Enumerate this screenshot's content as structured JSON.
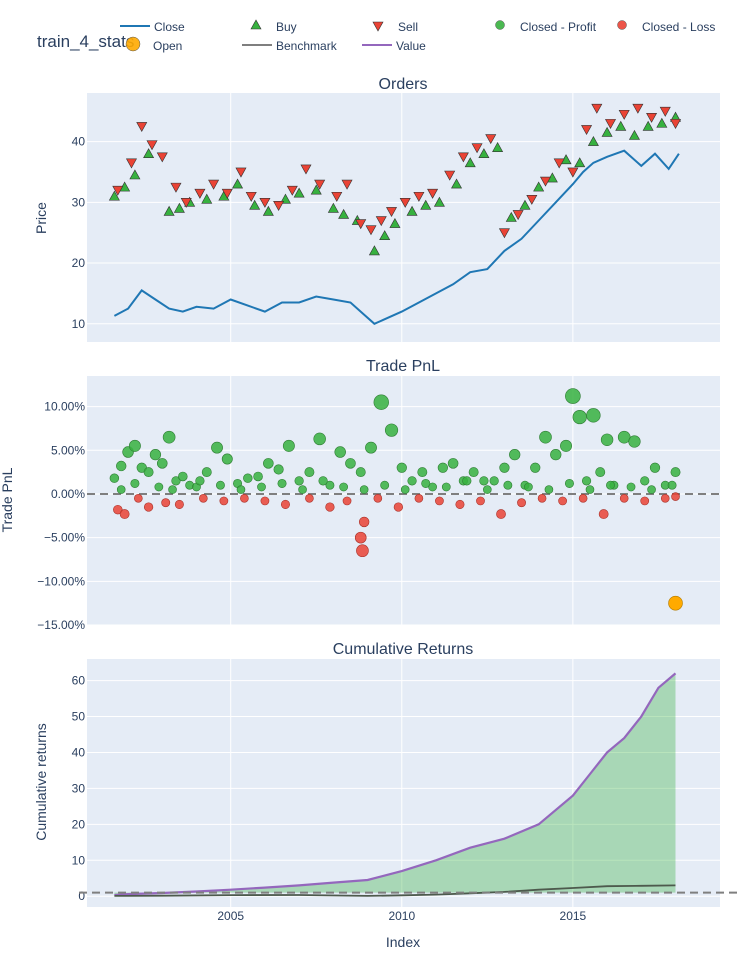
{
  "figure": {
    "title": "train_4_stats",
    "xaxis_label": "Index",
    "x_ticks": [
      "2005",
      "2010",
      "2015"
    ]
  },
  "legend": {
    "items": [
      {
        "label": "Close",
        "symbol": "line",
        "color": "#1f77b4"
      },
      {
        "label": "Buy",
        "symbol": "triangle-up",
        "color": "#37b13f"
      },
      {
        "label": "Sell",
        "symbol": "triangle-down",
        "color": "#ea4335"
      },
      {
        "label": "Closed - Profit",
        "symbol": "circle",
        "color": "#37b13f"
      },
      {
        "label": "Closed - Loss",
        "symbol": "circle",
        "color": "#ea4335"
      },
      {
        "label": "Open",
        "symbol": "circle",
        "color": "#ffaa00"
      },
      {
        "label": "Benchmark",
        "symbol": "line",
        "color": "#7f7f7f"
      },
      {
        "label": "Value",
        "symbol": "line",
        "color": "#9467bd"
      }
    ]
  },
  "colors": {
    "plot_bg": "#e5ecf6",
    "grid": "#ffffff",
    "close": "#1f77b4",
    "buy": "#37b13f",
    "sell": "#ea4335",
    "profit": "#37b13f",
    "loss": "#ea4335",
    "open": "#ffaa00",
    "benchmark": "#7f7f7f",
    "value": "#9467bd",
    "fill": "#37b13f"
  },
  "chart_data": [
    {
      "type": "line",
      "title": "Orders",
      "ylabel": "Price",
      "xlim": [
        2000.8,
        2019.3
      ],
      "ylim": [
        7,
        48
      ],
      "y_ticks": [
        "10",
        "20",
        "30",
        "40"
      ],
      "series": [
        {
          "name": "Close",
          "x": [
            2001.6,
            2002.0,
            2002.4,
            2002.8,
            2003.2,
            2003.6,
            2004.0,
            2004.5,
            2005.0,
            2005.5,
            2006.0,
            2006.5,
            2007.0,
            2007.5,
            2008.0,
            2008.5,
            2008.9,
            2009.2,
            2009.6,
            2010.0,
            2010.5,
            2011.0,
            2011.5,
            2012.0,
            2012.5,
            2013.0,
            2013.5,
            2014.0,
            2014.5,
            2015.0,
            2015.3,
            2015.6,
            2016.0,
            2016.5,
            2017.0,
            2017.4,
            2017.8,
            2018.1
          ],
          "y": [
            11.3,
            12.5,
            15.5,
            14.0,
            12.5,
            12.0,
            12.8,
            12.5,
            14.0,
            13.0,
            12.0,
            13.5,
            13.5,
            14.5,
            14.0,
            13.5,
            11.5,
            10.0,
            11.0,
            12.0,
            13.5,
            15.0,
            16.5,
            18.5,
            19.0,
            22.0,
            24.0,
            27.0,
            30.0,
            33.0,
            35.0,
            36.5,
            37.5,
            38.5,
            36.0,
            38.0,
            35.5,
            38.0
          ]
        },
        {
          "name": "Buy",
          "x": [
            2001.6,
            2001.9,
            2002.2,
            2002.6,
            2003.2,
            2003.5,
            2003.8,
            2004.3,
            2004.8,
            2005.2,
            2005.7,
            2006.1,
            2006.6,
            2007.0,
            2007.5,
            2008.0,
            2008.3,
            2008.7,
            2009.2,
            2009.5,
            2009.8,
            2010.3,
            2010.7,
            2011.1,
            2011.6,
            2012.0,
            2012.4,
            2012.8,
            2013.2,
            2013.6,
            2014.0,
            2014.4,
            2014.8,
            2015.2,
            2015.6,
            2016.0,
            2016.4,
            2016.8,
            2017.2,
            2017.6,
            2018.0
          ],
          "y": [
            31.0,
            32.5,
            34.5,
            38.0,
            28.5,
            29.0,
            30.0,
            30.5,
            31.0,
            33.0,
            29.5,
            28.5,
            30.5,
            31.5,
            32.0,
            29.0,
            28.0,
            27.0,
            22.0,
            24.5,
            26.5,
            28.5,
            29.5,
            30.0,
            33.0,
            36.5,
            38.0,
            39.0,
            27.5,
            29.5,
            32.5,
            34.0,
            37.0,
            36.5,
            40.0,
            41.5,
            42.5,
            41.0,
            42.5,
            43.0,
            44.0
          ]
        },
        {
          "name": "Sell",
          "x": [
            2001.7,
            2002.1,
            2002.4,
            2002.7,
            2003.0,
            2003.4,
            2003.7,
            2004.1,
            2004.5,
            2004.9,
            2005.3,
            2005.6,
            2006.0,
            2006.4,
            2006.8,
            2007.2,
            2007.6,
            2008.1,
            2008.4,
            2008.8,
            2009.1,
            2009.4,
            2009.7,
            2010.1,
            2010.5,
            2010.9,
            2011.4,
            2011.8,
            2012.2,
            2012.6,
            2013.0,
            2013.4,
            2013.8,
            2014.2,
            2014.6,
            2015.0,
            2015.4,
            2015.7,
            2016.1,
            2016.5,
            2016.9,
            2017.3,
            2017.7,
            2018.0
          ],
          "y": [
            32.0,
            36.5,
            42.5,
            39.5,
            37.5,
            32.5,
            30.0,
            31.5,
            33.0,
            31.5,
            35.0,
            31.0,
            30.0,
            29.5,
            32.0,
            35.5,
            33.0,
            31.0,
            33.0,
            26.5,
            25.5,
            27.0,
            28.5,
            30.0,
            31.0,
            31.5,
            34.5,
            37.5,
            39.0,
            40.5,
            25.0,
            28.0,
            30.5,
            33.5,
            36.5,
            35.0,
            42.0,
            45.5,
            43.0,
            44.5,
            45.5,
            44.0,
            45.0,
            43.0
          ]
        }
      ]
    },
    {
      "type": "scatter",
      "title": "Trade PnL",
      "ylabel": "Trade PnL",
      "xlim": [
        2000.8,
        2019.3
      ],
      "ylim": [
        -15.0,
        13.5
      ],
      "y_ticks": [
        "10.00%",
        "5.00%",
        "0.00%",
        "−5.00%",
        "−10.00%",
        "−15.00%"
      ],
      "zero_line": 0,
      "series": [
        {
          "name": "Closed - Profit",
          "x": [
            2001.6,
            2001.8,
            2002.0,
            2002.2,
            2002.4,
            2002.6,
            2002.8,
            2003.0,
            2003.2,
            2003.4,
            2003.6,
            2003.8,
            2004.0,
            2004.3,
            2004.6,
            2004.9,
            2005.2,
            2005.5,
            2005.8,
            2006.1,
            2006.4,
            2006.7,
            2007.0,
            2007.3,
            2007.6,
            2007.9,
            2008.2,
            2008.5,
            2008.8,
            2009.1,
            2009.4,
            2009.7,
            2010.0,
            2010.3,
            2010.6,
            2010.9,
            2011.2,
            2011.5,
            2011.8,
            2012.1,
            2012.4,
            2012.7,
            2013.0,
            2013.3,
            2013.6,
            2013.9,
            2014.2,
            2014.5,
            2014.8,
            2015.0,
            2015.2,
            2015.4,
            2015.6,
            2015.8,
            2016.0,
            2016.2,
            2016.5,
            2016.8,
            2017.1,
            2017.4,
            2017.7,
            2018.0,
            2001.8,
            2002.2,
            2002.9,
            2003.3,
            2004.1,
            2004.7,
            2005.3,
            2005.9,
            2006.5,
            2007.1,
            2007.7,
            2008.3,
            2008.9,
            2009.5,
            2010.1,
            2010.7,
            2011.3,
            2011.9,
            2012.5,
            2013.1,
            2013.7,
            2014.3,
            2014.9,
            2015.5,
            2016.1,
            2016.7,
            2017.3,
            2017.9
          ],
          "y": [
            1.8,
            3.2,
            4.8,
            5.5,
            3.0,
            2.5,
            4.5,
            3.5,
            6.5,
            1.5,
            2.0,
            1.0,
            0.8,
            2.5,
            5.3,
            4.0,
            1.2,
            1.8,
            2.0,
            3.5,
            2.8,
            5.5,
            1.5,
            2.5,
            6.3,
            1.0,
            4.8,
            3.5,
            2.5,
            5.3,
            10.5,
            7.3,
            3.0,
            1.5,
            2.5,
            0.8,
            3.0,
            3.5,
            1.5,
            2.5,
            1.5,
            1.5,
            3.0,
            4.5,
            1.0,
            3.0,
            6.5,
            4.5,
            5.5,
            11.2,
            8.8,
            1.5,
            9.0,
            2.5,
            6.2,
            1.0,
            6.5,
            6.0,
            1.5,
            3.0,
            1.0,
            2.5,
            0.5,
            1.2,
            0.8,
            0.5,
            1.5,
            1.0,
            0.5,
            0.8,
            1.2,
            0.5,
            1.5,
            0.8,
            0.5,
            1.0,
            0.5,
            1.2,
            0.8,
            1.5,
            0.5,
            1.0,
            0.8,
            0.5,
            1.2,
            0.5,
            1.0,
            0.8,
            0.5,
            1.0
          ]
        },
        {
          "name": "Closed - Loss",
          "x": [
            2001.7,
            2001.9,
            2002.3,
            2002.6,
            2003.1,
            2003.5,
            2004.2,
            2004.8,
            2005.4,
            2006.0,
            2006.6,
            2007.3,
            2007.9,
            2008.4,
            2008.8,
            2008.85,
            2008.9,
            2009.3,
            2009.9,
            2010.5,
            2011.1,
            2011.7,
            2012.3,
            2012.9,
            2013.5,
            2014.1,
            2014.7,
            2015.3,
            2015.9,
            2016.5,
            2017.1,
            2017.7,
            2018.0
          ],
          "y": [
            -1.8,
            -2.3,
            -0.5,
            -1.5,
            -1.0,
            -1.2,
            -0.5,
            -0.8,
            -0.5,
            -0.8,
            -1.2,
            -0.5,
            -1.5,
            -0.8,
            -5.0,
            -6.5,
            -3.2,
            -0.5,
            -1.5,
            -0.5,
            -0.8,
            -1.2,
            -0.8,
            -2.3,
            -1.0,
            -0.5,
            -0.8,
            -0.5,
            -2.3,
            -0.5,
            -0.8,
            -0.5,
            -0.3
          ]
        },
        {
          "name": "Open",
          "x": [
            2018.0
          ],
          "y": [
            -12.5
          ]
        }
      ]
    },
    {
      "type": "area",
      "title": "Cumulative Returns",
      "ylabel": "Cumulative returns",
      "xlim": [
        2000.8,
        2019.3
      ],
      "ylim": [
        -3,
        66
      ],
      "y_ticks": [
        "0",
        "10",
        "20",
        "30",
        "40",
        "50",
        "60"
      ],
      "baseline": 1,
      "series": [
        {
          "name": "Benchmark",
          "x": [
            2001.6,
            2003.0,
            2005.0,
            2007.0,
            2009.0,
            2010.0,
            2011.0,
            2012.0,
            2013.0,
            2014.0,
            2015.0,
            2016.0,
            2017.0,
            2018.0
          ],
          "y": [
            0.1,
            0.15,
            0.3,
            0.35,
            0.1,
            0.25,
            0.45,
            0.8,
            1.2,
            1.8,
            2.3,
            2.8,
            2.9,
            3.0
          ]
        },
        {
          "name": "Value",
          "x": [
            2001.6,
            2002.0,
            2003.0,
            2004.0,
            2005.0,
            2006.0,
            2007.0,
            2008.0,
            2009.0,
            2010.0,
            2011.0,
            2012.0,
            2013.0,
            2014.0,
            2015.0,
            2015.5,
            2016.0,
            2016.5,
            2017.0,
            2017.5,
            2018.0
          ],
          "y": [
            0.3,
            0.6,
            0.9,
            1.3,
            1.8,
            2.4,
            3.0,
            3.8,
            4.5,
            7.0,
            10.0,
            13.5,
            16.0,
            20.0,
            28.0,
            34.0,
            40.0,
            44.0,
            50.0,
            58.0,
            62.0
          ]
        }
      ]
    }
  ]
}
